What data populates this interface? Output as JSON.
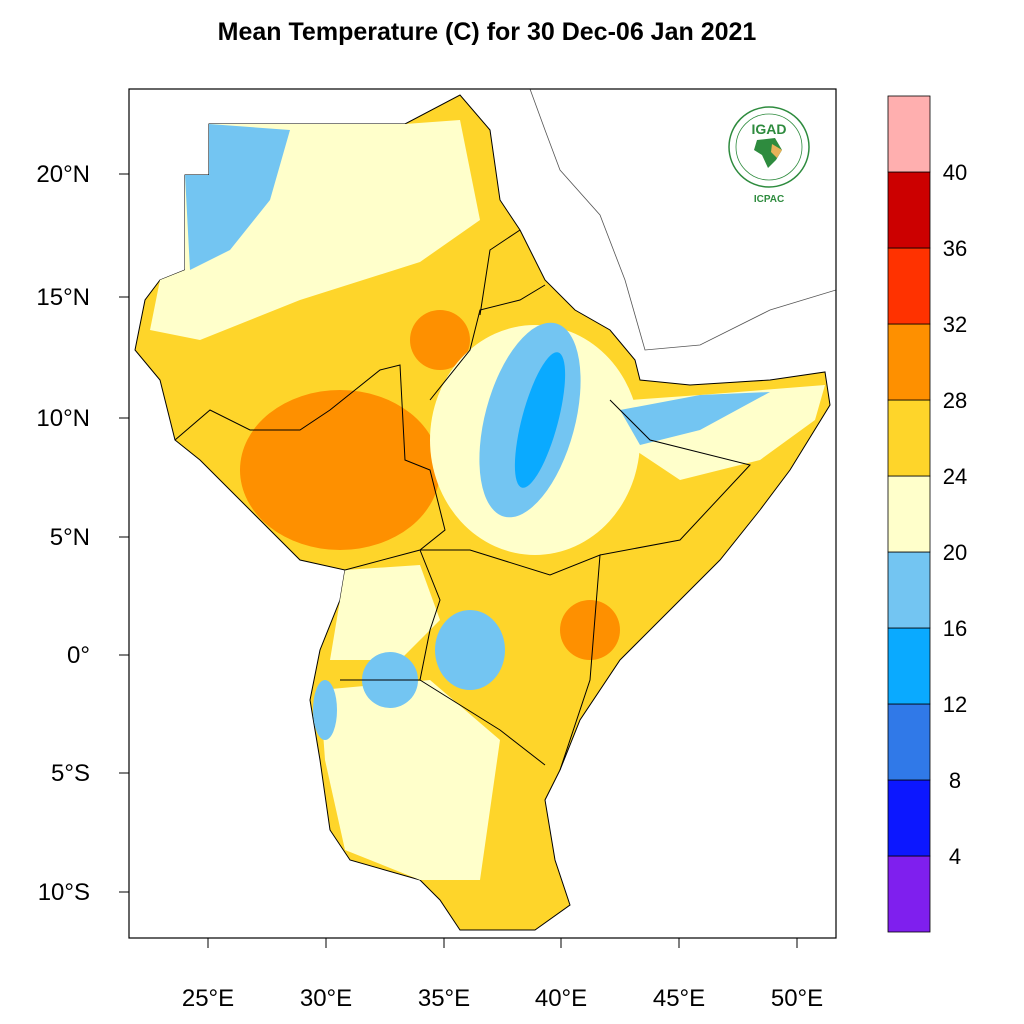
{
  "title": "Mean Temperature (C) for 30 Dec-06 Jan 2021",
  "map": {
    "lon_ticks": [
      "25°E",
      "30°E",
      "35°E",
      "40°E",
      "45°E",
      "50°E"
    ],
    "lat_ticks": [
      "20°N",
      "15°N",
      "10°N",
      "5°N",
      "0°",
      "5°S",
      "10°S"
    ],
    "lon_range": [
      21.7,
      51.7
    ],
    "lat_range": [
      -12,
      23.5
    ],
    "variable": "Mean Temperature (C)"
  },
  "colorbar": {
    "labels": [
      "4",
      "8",
      "12",
      "16",
      "20",
      "24",
      "28",
      "32",
      "36",
      "40"
    ],
    "colors": [
      "#7f1fee",
      "#0c17ff",
      "#3079e8",
      "#0aaaff",
      "#73c5f2",
      "#ffffcb",
      "#fed52a",
      "#fe9000",
      "#ff3200",
      "#cc0000",
      "#ffafaf"
    ]
  },
  "logo": {
    "text": "IGAD",
    "subtitle": "ICPAC"
  }
}
